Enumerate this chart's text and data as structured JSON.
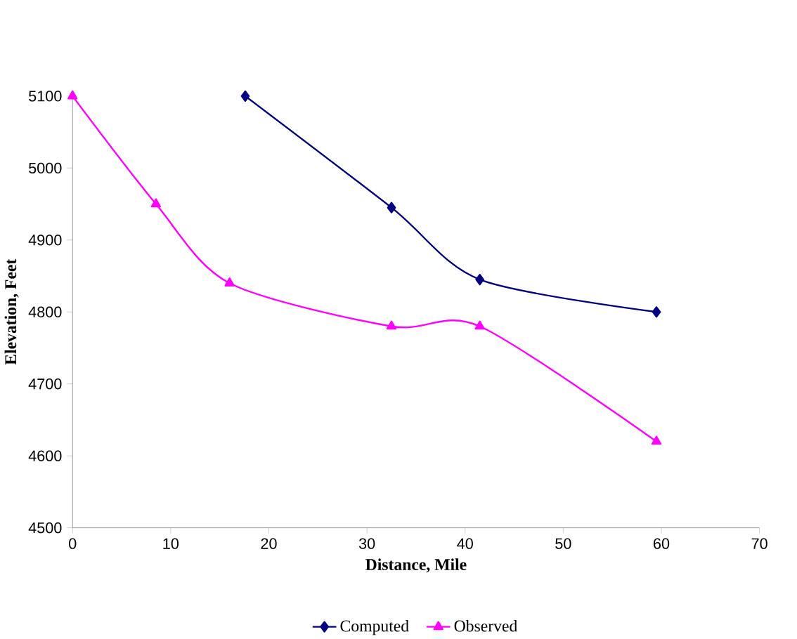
{
  "chart_data": {
    "type": "line",
    "xlabel": "Distance, Mile",
    "ylabel": "Elevation, Feet",
    "xlim": [
      0,
      70
    ],
    "xticks": [
      0,
      10,
      20,
      30,
      40,
      50,
      60,
      70
    ],
    "ylim": [
      4500,
      5100
    ],
    "yticks": [
      4500,
      4600,
      4700,
      4800,
      4900,
      5000,
      5100
    ],
    "legend": "bottom",
    "grid": false,
    "series": [
      {
        "name": "Computed",
        "color": "#000080",
        "marker": "diamond",
        "x": [
          17.6,
          32.5,
          41.5,
          59.5
        ],
        "values": [
          5100,
          4945,
          4845,
          4800
        ]
      },
      {
        "name": "Observed",
        "color": "#ff00ff",
        "marker": "triangle",
        "x": [
          0,
          8.5,
          16,
          32.5,
          41.5,
          59.5
        ],
        "values": [
          5100,
          4950,
          4840,
          4780,
          4780,
          4620
        ]
      }
    ]
  }
}
